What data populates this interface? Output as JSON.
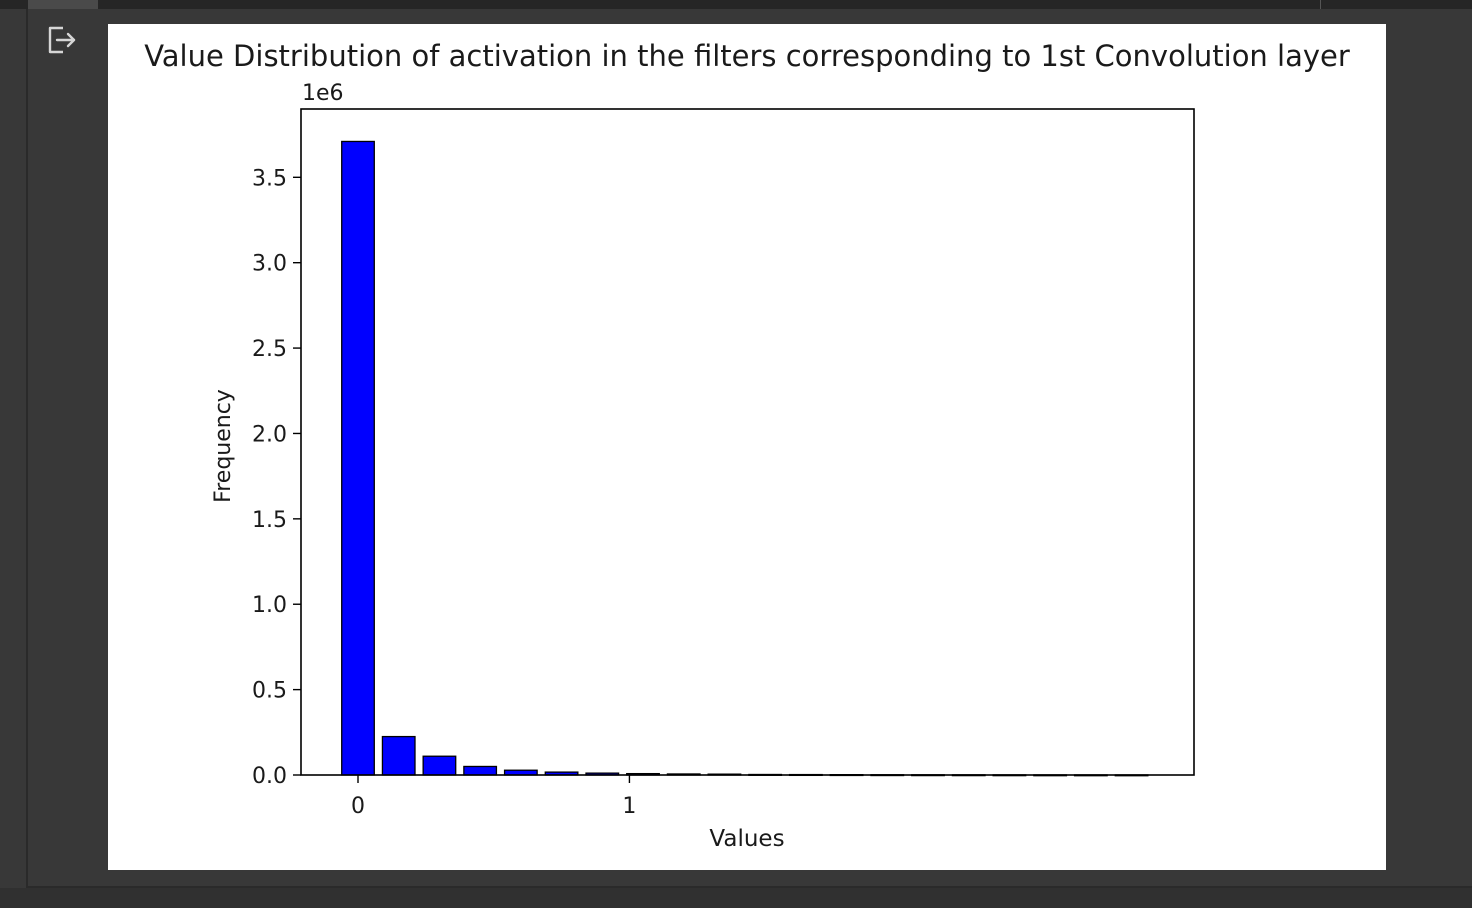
{
  "icons": {
    "output_action": "output-arrow-icon"
  },
  "colors": {
    "bar_fill": "#0000ff",
    "bar_edge": "#000000",
    "panel_bg": "#ffffff",
    "app_bg": "#383838"
  },
  "chart_data": {
    "type": "bar",
    "title": "Value Distribution of activation in the filters corresponding to 1st Convolution layer",
    "xlabel": "Values",
    "ylabel": "Frequency",
    "y_offset_label": "1e6",
    "x": [
      0.0,
      0.15,
      0.3,
      0.45,
      0.6,
      0.75,
      0.9,
      1.05,
      1.2,
      1.35,
      1.5,
      1.65,
      1.8,
      1.95,
      2.1,
      2.25,
      2.4,
      2.55,
      2.7,
      2.85
    ],
    "values": [
      3710000,
      225000,
      110000,
      50000,
      28000,
      17000,
      11000,
      8000,
      6000,
      5000,
      3000,
      2500,
      2000,
      1500,
      1200,
      1000,
      800,
      600,
      500,
      400
    ],
    "bar_width": 0.12,
    "xlim": [
      -0.21,
      3.08
    ],
    "ylim": [
      0,
      3900000
    ],
    "x_ticks": [
      {
        "value": 0,
        "label": "0"
      },
      {
        "value": 1,
        "label": "1"
      }
    ],
    "y_ticks": [
      {
        "value": 0,
        "label": "0.0"
      },
      {
        "value": 500000,
        "label": "0.5"
      },
      {
        "value": 1000000,
        "label": "1.0"
      },
      {
        "value": 1500000,
        "label": "1.5"
      },
      {
        "value": 2000000,
        "label": "2.0"
      },
      {
        "value": 2500000,
        "label": "2.5"
      },
      {
        "value": 3000000,
        "label": "3.0"
      },
      {
        "value": 3500000,
        "label": "3.5"
      }
    ],
    "grid": false,
    "legend": "none"
  }
}
